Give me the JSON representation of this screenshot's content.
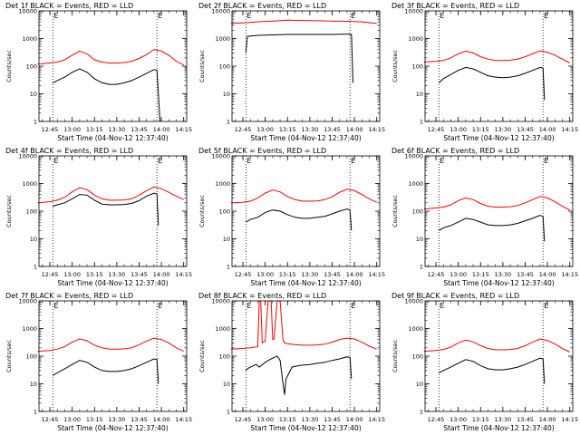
{
  "figure": {
    "axis_common": {
      "ylabel": "Counts/sec",
      "xlabel": "Start Time (04-Nov-12 12:37:40)",
      "x_ticks": [
        "12:45",
        "13:00",
        "13:15",
        "13:30",
        "13:45",
        "14:00",
        "14:15"
      ],
      "y_ticks": [
        "1",
        "10",
        "100",
        "1000",
        "10000"
      ],
      "flag_letters": [
        "E",
        "E"
      ]
    }
  },
  "chart_data": [
    {
      "type": "line",
      "title": "Det 1f BLACK = Events, RED = LLD",
      "xlim": [
        "12:37:40",
        "14:17:00"
      ],
      "ylim": [
        1,
        10000
      ],
      "y_scale": "log",
      "markers": [
        "12:47:00",
        "13:57:00"
      ],
      "series": [
        {
          "name": "BLACK = Events",
          "color": "#000000",
          "x": [
            "12:47",
            "12:50",
            "12:55",
            "13:00",
            "13:05",
            "13:10",
            "13:15",
            "13:20",
            "13:25",
            "13:30",
            "13:35",
            "13:40",
            "13:45",
            "13:50",
            "13:55",
            "13:57",
            "13:58",
            "13:59"
          ],
          "y": [
            25,
            30,
            40,
            60,
            80,
            60,
            35,
            25,
            22,
            22,
            25,
            30,
            40,
            55,
            75,
            70,
            10,
            1
          ]
        },
        {
          "name": "RED = LLD",
          "color": "#ff0000",
          "x": [
            "12:37",
            "12:45",
            "12:50",
            "12:55",
            "13:00",
            "13:05",
            "13:10",
            "13:15",
            "13:20",
            "13:25",
            "13:30",
            "13:35",
            "13:40",
            "13:45",
            "13:50",
            "13:55",
            "14:00",
            "14:05",
            "14:10",
            "14:15"
          ],
          "y": [
            120,
            130,
            140,
            170,
            250,
            350,
            280,
            170,
            140,
            130,
            130,
            135,
            150,
            190,
            260,
            400,
            350,
            250,
            150,
            110
          ]
        }
      ]
    },
    {
      "type": "line",
      "title": "Det 2f BLACK = Events, RED = LLD",
      "xlim": [
        "12:37:40",
        "14:17:00"
      ],
      "ylim": [
        1,
        10000
      ],
      "y_scale": "log",
      "markers": [
        "12:47:00",
        "13:57:00"
      ],
      "series": [
        {
          "name": "BLACK = Events",
          "color": "#000000",
          "x": [
            "12:47",
            "12:48",
            "12:55",
            "13:05",
            "13:15",
            "13:25",
            "13:35",
            "13:45",
            "13:55",
            "13:58",
            "13:59"
          ],
          "y": [
            300,
            1200,
            1300,
            1350,
            1400,
            1400,
            1400,
            1400,
            1450,
            1400,
            25
          ]
        },
        {
          "name": "RED = LLD",
          "color": "#ff0000",
          "x": [
            "12:37",
            "12:45",
            "12:55",
            "13:05",
            "13:15",
            "13:25",
            "13:35",
            "13:45",
            "13:55",
            "14:05",
            "14:15"
          ],
          "y": [
            3500,
            3700,
            4000,
            4300,
            4600,
            4500,
            4400,
            4300,
            4200,
            4000,
            3500
          ]
        }
      ]
    },
    {
      "type": "line",
      "title": "Det 3f BLACK = Events, RED = LLD",
      "xlim": [
        "12:37:40",
        "14:17:00"
      ],
      "ylim": [
        1,
        10000
      ],
      "y_scale": "log",
      "markers": [
        "12:47:00",
        "13:57:00"
      ],
      "series": [
        {
          "name": "BLACK = Events",
          "color": "#000000",
          "x": [
            "12:47",
            "12:50",
            "12:55",
            "13:00",
            "13:05",
            "13:10",
            "13:15",
            "13:20",
            "13:25",
            "13:30",
            "13:35",
            "13:40",
            "13:45",
            "13:50",
            "13:55",
            "13:57",
            "13:58"
          ],
          "y": [
            25,
            35,
            50,
            70,
            90,
            80,
            60,
            45,
            40,
            38,
            40,
            45,
            55,
            70,
            90,
            85,
            6
          ]
        },
        {
          "name": "RED = LLD",
          "color": "#ff0000",
          "x": [
            "12:37",
            "12:45",
            "12:50",
            "12:55",
            "13:00",
            "13:05",
            "13:10",
            "13:15",
            "13:20",
            "13:25",
            "13:30",
            "13:35",
            "13:40",
            "13:45",
            "13:50",
            "13:55",
            "14:00",
            "14:05",
            "14:10",
            "14:15"
          ],
          "y": [
            140,
            150,
            160,
            200,
            280,
            350,
            300,
            220,
            180,
            160,
            160,
            165,
            180,
            220,
            280,
            360,
            320,
            250,
            180,
            130
          ]
        }
      ]
    },
    {
      "type": "line",
      "title": "Det 4f BLACK = Events, RED = LLD",
      "xlim": [
        "12:37:40",
        "14:17:00"
      ],
      "ylim": [
        1,
        10000
      ],
      "y_scale": "log",
      "markers": [
        "12:47:00",
        "13:57:00"
      ],
      "series": [
        {
          "name": "BLACK = Events",
          "color": "#000000",
          "x": [
            "12:47",
            "12:50",
            "12:55",
            "13:00",
            "13:05",
            "13:10",
            "13:15",
            "13:20",
            "13:25",
            "13:30",
            "13:35",
            "13:40",
            "13:45",
            "13:50",
            "13:55",
            "13:57",
            "13:58"
          ],
          "y": [
            150,
            170,
            200,
            280,
            400,
            380,
            250,
            180,
            170,
            170,
            175,
            190,
            240,
            350,
            450,
            420,
            30
          ]
        },
        {
          "name": "RED = LLD",
          "color": "#ff0000",
          "x": [
            "12:37",
            "12:45",
            "12:50",
            "12:55",
            "13:00",
            "13:05",
            "13:10",
            "13:15",
            "13:20",
            "13:25",
            "13:30",
            "13:35",
            "13:40",
            "13:45",
            "13:50",
            "13:55",
            "14:00",
            "14:05",
            "14:10",
            "14:15"
          ],
          "y": [
            200,
            220,
            250,
            320,
            500,
            700,
            600,
            380,
            280,
            250,
            250,
            255,
            280,
            380,
            550,
            750,
            650,
            480,
            350,
            260
          ]
        }
      ]
    },
    {
      "type": "line",
      "title": "Det 5f BLACK = Events, RED = LLD",
      "xlim": [
        "12:37:40",
        "14:17:00"
      ],
      "ylim": [
        1,
        10000
      ],
      "y_scale": "log",
      "markers": [
        "12:47:00",
        "13:57:00"
      ],
      "series": [
        {
          "name": "BLACK = Events",
          "color": "#000000",
          "x": [
            "12:47",
            "12:50",
            "12:55",
            "13:00",
            "13:05",
            "13:10",
            "13:15",
            "13:20",
            "13:25",
            "13:30",
            "13:35",
            "13:40",
            "13:45",
            "13:50",
            "13:55",
            "13:57",
            "13:58"
          ],
          "y": [
            40,
            50,
            60,
            90,
            110,
            100,
            75,
            60,
            55,
            55,
            60,
            65,
            80,
            100,
            120,
            110,
            20
          ]
        },
        {
          "name": "RED = LLD",
          "color": "#ff0000",
          "x": [
            "12:37",
            "12:45",
            "12:50",
            "12:55",
            "13:00",
            "13:05",
            "13:10",
            "13:15",
            "13:20",
            "13:25",
            "13:30",
            "13:35",
            "13:40",
            "13:45",
            "13:50",
            "13:55",
            "14:00",
            "14:05",
            "14:10",
            "14:15"
          ],
          "y": [
            200,
            210,
            230,
            300,
            450,
            580,
            500,
            340,
            260,
            230,
            230,
            235,
            260,
            330,
            480,
            620,
            550,
            400,
            280,
            210
          ]
        }
      ]
    },
    {
      "type": "line",
      "title": "Det 6f BLACK = Events, RED = LLD",
      "xlim": [
        "12:37:40",
        "14:17:00"
      ],
      "ylim": [
        1,
        10000
      ],
      "y_scale": "log",
      "markers": [
        "12:47:00",
        "13:57:00"
      ],
      "series": [
        {
          "name": "BLACK = Events",
          "color": "#000000",
          "x": [
            "12:47",
            "12:50",
            "12:55",
            "13:00",
            "13:05",
            "13:10",
            "13:15",
            "13:20",
            "13:25",
            "13:30",
            "13:35",
            "13:40",
            "13:45",
            "13:50",
            "13:55",
            "13:57",
            "13:58"
          ],
          "y": [
            20,
            25,
            30,
            40,
            55,
            50,
            40,
            32,
            30,
            30,
            32,
            36,
            45,
            55,
            70,
            65,
            8
          ]
        },
        {
          "name": "RED = LLD",
          "color": "#ff0000",
          "x": [
            "12:37",
            "12:45",
            "12:50",
            "12:55",
            "13:00",
            "13:05",
            "13:10",
            "13:15",
            "13:20",
            "13:25",
            "13:30",
            "13:35",
            "13:40",
            "13:45",
            "13:50",
            "13:55",
            "14:00",
            "14:05",
            "14:10",
            "14:15"
          ],
          "y": [
            120,
            130,
            140,
            170,
            240,
            300,
            260,
            190,
            150,
            140,
            140,
            145,
            160,
            200,
            260,
            340,
            300,
            220,
            150,
            110
          ]
        }
      ]
    },
    {
      "type": "line",
      "title": "Det 7f BLACK = Events, RED = LLD",
      "xlim": [
        "12:37:40",
        "14:17:00"
      ],
      "ylim": [
        1,
        10000
      ],
      "y_scale": "log",
      "markers": [
        "12:47:00",
        "13:57:00"
      ],
      "series": [
        {
          "name": "BLACK = Events",
          "color": "#000000",
          "x": [
            "12:47",
            "12:50",
            "12:55",
            "13:00",
            "13:05",
            "13:10",
            "13:15",
            "13:20",
            "13:25",
            "13:30",
            "13:35",
            "13:40",
            "13:45",
            "13:50",
            "13:55",
            "13:57",
            "13:58"
          ],
          "y": [
            20,
            25,
            35,
            50,
            70,
            60,
            40,
            30,
            28,
            28,
            30,
            35,
            45,
            60,
            80,
            75,
            10
          ]
        },
        {
          "name": "RED = LLD",
          "color": "#ff0000",
          "x": [
            "12:37",
            "12:45",
            "12:50",
            "12:55",
            "13:00",
            "13:05",
            "13:10",
            "13:15",
            "13:20",
            "13:25",
            "13:30",
            "13:35",
            "13:40",
            "13:45",
            "13:50",
            "13:55",
            "14:00",
            "14:05",
            "14:10",
            "14:15"
          ],
          "y": [
            150,
            160,
            180,
            220,
            320,
            420,
            360,
            250,
            200,
            180,
            180,
            185,
            200,
            260,
            350,
            450,
            400,
            300,
            200,
            150
          ]
        }
      ]
    },
    {
      "type": "line",
      "title": "Det 8f BLACK = Events, RED = LLD",
      "xlim": [
        "12:37:40",
        "14:17:00"
      ],
      "ylim": [
        1,
        10000
      ],
      "y_scale": "log",
      "markers": [
        "12:47:00",
        "13:57:00"
      ],
      "series": [
        {
          "name": "BLACK = Events",
          "color": "#000000",
          "x": [
            "12:47",
            "12:48",
            "12:50",
            "12:52",
            "12:54",
            "12:56",
            "13:00",
            "13:04",
            "13:06",
            "13:08",
            "13:10",
            "13:12",
            "13:13",
            "13:14",
            "13:18",
            "13:22",
            "13:26",
            "13:30",
            "13:35",
            "13:40",
            "13:45",
            "13:50",
            "13:55",
            "13:57",
            "13:58"
          ],
          "y": [
            30,
            35,
            40,
            45,
            50,
            40,
            60,
            80,
            90,
            100,
            70,
            10,
            4,
            15,
            40,
            45,
            48,
            50,
            55,
            60,
            70,
            80,
            95,
            90,
            15
          ]
        },
        {
          "name": "RED = LLD",
          "color": "#ff0000",
          "x": [
            "12:37",
            "12:45",
            "12:50",
            "12:55",
            "12:56",
            "12:57",
            "12:58",
            "13:00",
            "13:02",
            "13:04",
            "13:05",
            "13:06",
            "13:08",
            "13:10",
            "13:12",
            "13:13",
            "13:15",
            "13:20",
            "13:25",
            "13:30",
            "13:35",
            "13:40",
            "13:45",
            "13:50",
            "13:55",
            "14:00",
            "14:05",
            "14:10",
            "14:15"
          ],
          "y": [
            180,
            190,
            200,
            220,
            10000,
            10000,
            300,
            350,
            10000,
            10000,
            400,
            420,
            10000,
            10000,
            380,
            300,
            280,
            260,
            250,
            250,
            255,
            270,
            320,
            400,
            450,
            420,
            320,
            230,
            180
          ]
        }
      ]
    },
    {
      "type": "line",
      "title": "Det 9f BLACK = Events, RED = LLD",
      "xlim": [
        "12:37:40",
        "14:17:00"
      ],
      "ylim": [
        1,
        10000
      ],
      "y_scale": "log",
      "markers": [
        "12:47:00",
        "13:57:00"
      ],
      "series": [
        {
          "name": "BLACK = Events",
          "color": "#000000",
          "x": [
            "12:47",
            "12:50",
            "12:55",
            "13:00",
            "13:05",
            "13:10",
            "13:15",
            "13:20",
            "13:25",
            "13:30",
            "13:35",
            "13:40",
            "13:45",
            "13:50",
            "13:55",
            "13:57",
            "13:58"
          ],
          "y": [
            25,
            30,
            40,
            55,
            75,
            65,
            45,
            35,
            32,
            32,
            35,
            40,
            50,
            65,
            85,
            80,
            10
          ]
        },
        {
          "name": "RED = LLD",
          "color": "#ff0000",
          "x": [
            "12:37",
            "12:45",
            "12:50",
            "12:55",
            "13:00",
            "13:05",
            "13:10",
            "13:15",
            "13:20",
            "13:25",
            "13:30",
            "13:35",
            "13:40",
            "13:45",
            "13:50",
            "13:55",
            "14:00",
            "14:05",
            "14:10",
            "14:15"
          ],
          "y": [
            150,
            160,
            175,
            210,
            300,
            380,
            330,
            240,
            190,
            170,
            170,
            175,
            190,
            240,
            320,
            420,
            370,
            280,
            190,
            140
          ]
        }
      ]
    }
  ]
}
